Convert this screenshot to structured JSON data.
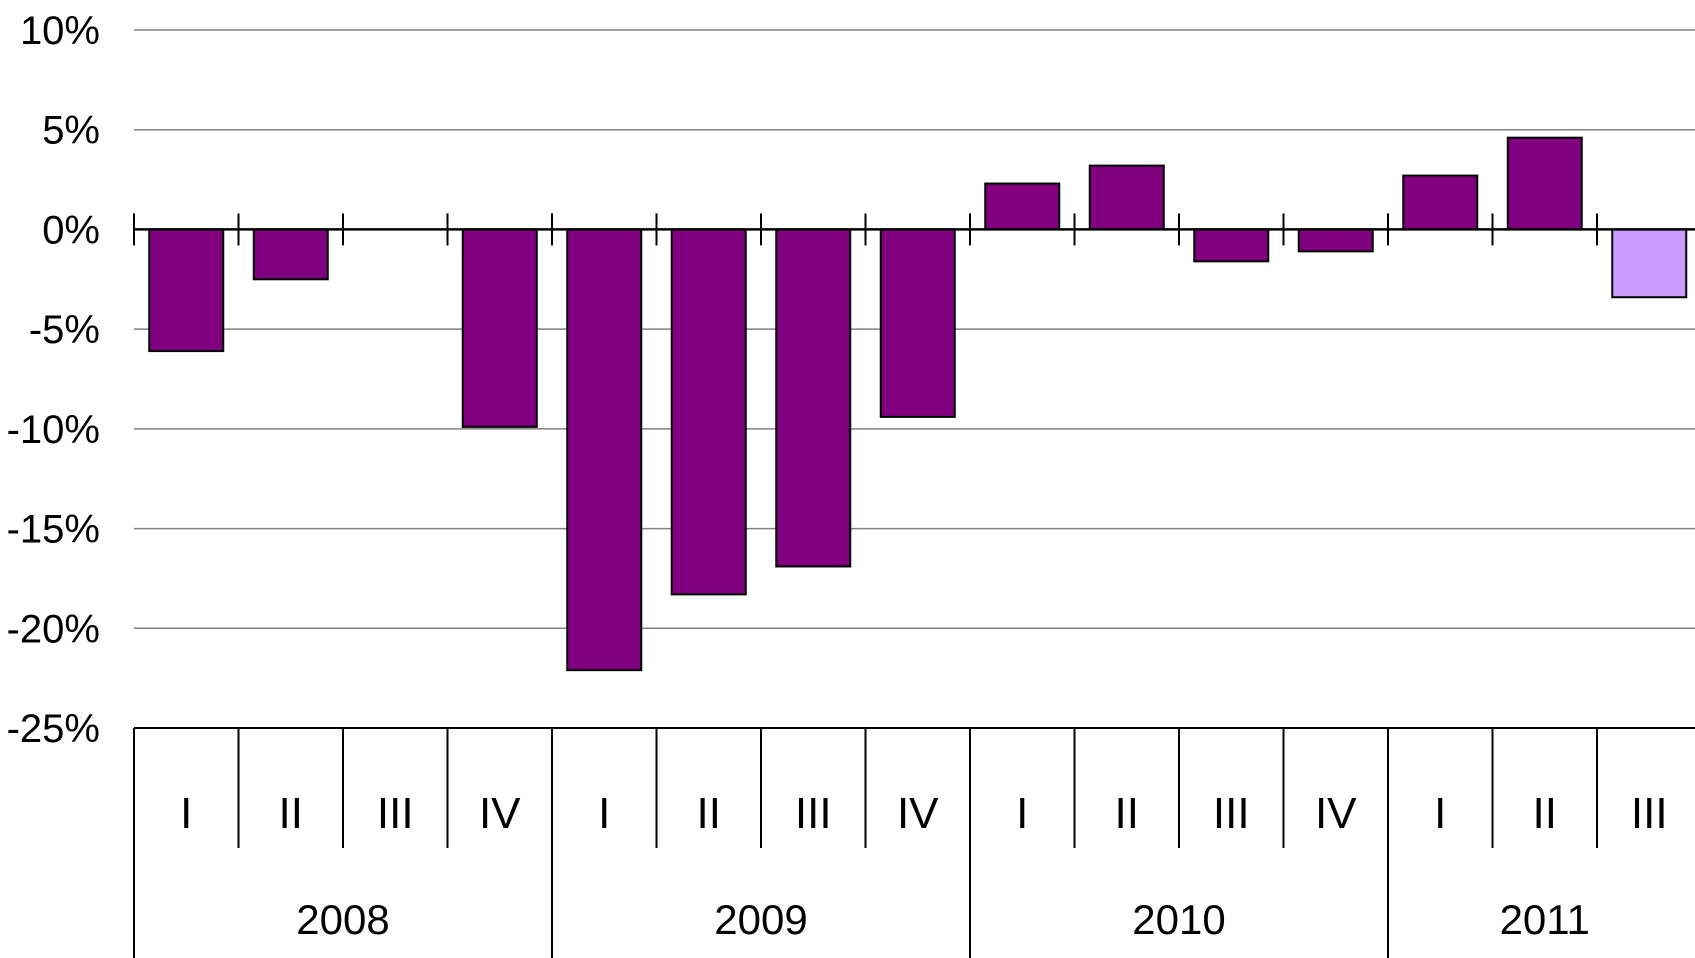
{
  "chart_data": {
    "type": "bar",
    "title": "",
    "xlabel": "",
    "ylabel": "",
    "ylim": [
      -25,
      10
    ],
    "y_ticks": [
      10,
      5,
      0,
      -5,
      -10,
      -15,
      -20,
      -25
    ],
    "y_tick_labels": [
      "10%",
      "5%",
      "0%",
      "-5%",
      "-10%",
      "-15%",
      "-20%",
      "-25%"
    ],
    "grid": true,
    "legend": "none",
    "categories": [
      "I",
      "II",
      "III",
      "IV",
      "I",
      "II",
      "III",
      "IV",
      "I",
      "II",
      "III",
      "IV",
      "I",
      "II",
      "III"
    ],
    "years": [
      {
        "label": "2008",
        "quarters": 4
      },
      {
        "label": "2009",
        "quarters": 4
      },
      {
        "label": "2010",
        "quarters": 4
      },
      {
        "label": "2011",
        "quarters": 3
      }
    ],
    "values": [
      -6.1,
      -2.5,
      0,
      -9.9,
      -22.1,
      -18.3,
      -16.9,
      -9.4,
      2.3,
      3.2,
      -1.6,
      -1.1,
      2.7,
      4.6,
      -3.4
    ],
    "colors": {
      "bar": "#800080",
      "highlight": "#cc99ff",
      "highlight_index": 14,
      "outline": "#000000",
      "grid": "#808080"
    }
  }
}
